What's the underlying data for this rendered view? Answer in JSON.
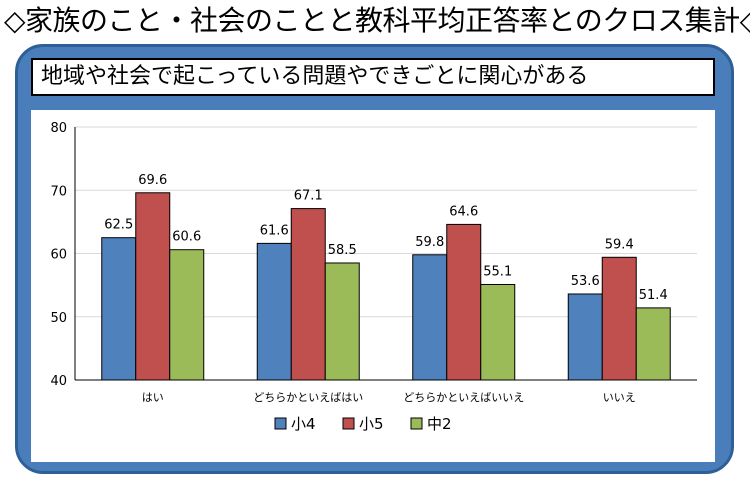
{
  "title": "◇家族のこと・社会のことと教科平均正答率とのクロス集計◇",
  "colors": {
    "panel": "#4a7ebb",
    "s4": "#4f81bd",
    "s5": "#c0504d",
    "c2": "#9bbb59"
  },
  "chart_data": {
    "type": "bar",
    "title": "地域や社会で起こっている問題やできごとに関心がある",
    "categories": [
      "はい",
      "どちらかといえばはい",
      "どちらかといえばいいえ",
      "いいえ"
    ],
    "series": [
      {
        "name": "小4",
        "values": [
          62.5,
          61.6,
          59.8,
          53.6
        ],
        "color": "#4f81bd"
      },
      {
        "name": "小5",
        "values": [
          69.6,
          67.1,
          64.6,
          59.4
        ],
        "color": "#c0504d"
      },
      {
        "name": "中2",
        "values": [
          60.6,
          58.5,
          55.1,
          51.4
        ],
        "color": "#9bbb59"
      }
    ],
    "ylim": [
      40,
      80
    ],
    "yticks": [
      40,
      50,
      60,
      70,
      80
    ],
    "grid": true,
    "legend": "bottom"
  }
}
